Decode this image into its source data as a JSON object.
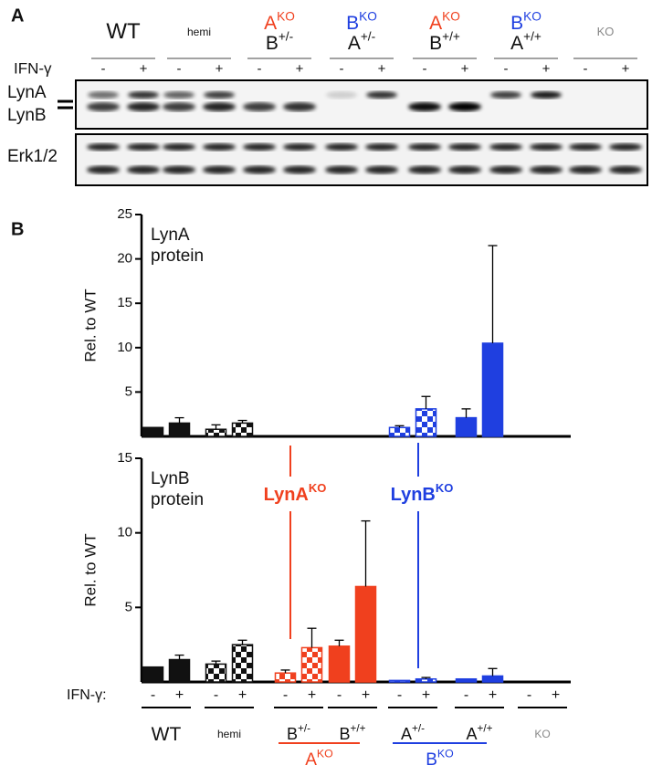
{
  "panel_a": {
    "label": "A",
    "ifn_label": "IFN-γ",
    "ifn_labels": [
      "-",
      "+"
    ],
    "groups": [
      {
        "label": "WT",
        "color": "#111111"
      },
      {
        "label": "hemi",
        "color": "#111111"
      },
      {
        "label": "A",
        "sup": "KO",
        "sub_label": "B",
        "sub_sup": "+/-",
        "color": "#f0401e"
      },
      {
        "label": "B",
        "sup": "KO",
        "sub_label": "A",
        "sub_sup": "+/-",
        "color": "#1f3fe0"
      },
      {
        "label": "A",
        "sup": "KO",
        "sub_label": "B",
        "sub_sup": "+/+",
        "color": "#f0401e"
      },
      {
        "label": "B",
        "sup": "KO",
        "sub_label": "A",
        "sub_sup": "+/+",
        "color": "#1f3fe0"
      },
      {
        "label": "KO",
        "color": "#888888"
      }
    ],
    "blot_labels": [
      "LynA",
      "LynB",
      "Erk1/2"
    ]
  },
  "panel_b_label": "B",
  "chart_data": [
    {
      "type": "bar",
      "title": [
        "LynA",
        "protein"
      ],
      "y_label": "Rel. to WT",
      "ylim": [
        0,
        25
      ],
      "yticks": [
        5,
        10,
        15,
        20,
        25
      ],
      "values": [
        1,
        1.5,
        0.8,
        1.5,
        0,
        0,
        0,
        0,
        1.0,
        3.1,
        2.1,
        10.5,
        0,
        0
      ],
      "errors": [
        null,
        0.6,
        0.5,
        0.3,
        null,
        null,
        null,
        null,
        0.2,
        1.4,
        1.0,
        11.0,
        null,
        null
      ],
      "colors": [
        "#111111",
        "#111111",
        "#111111",
        "#111111",
        "#f0401e",
        "#f0401e",
        "#f0401e",
        "#f0401e",
        "#1f3fe0",
        "#1f3fe0",
        "#1f3fe0",
        "#1f3fe0",
        "#111111",
        "#111111"
      ],
      "patterns": [
        "solid",
        "solid",
        "checker",
        "checker",
        "checker",
        "checker",
        "solid",
        "solid",
        "checker",
        "checker",
        "solid",
        "solid",
        "solid",
        "solid"
      ]
    },
    {
      "type": "bar",
      "title": [
        "LynB",
        "protein"
      ],
      "y_label": "Rel. to WT",
      "ylim": [
        0,
        15
      ],
      "yticks": [
        5,
        10,
        15
      ],
      "values": [
        1,
        1.5,
        1.2,
        2.5,
        0.6,
        2.3,
        2.4,
        6.4,
        0.1,
        0.2,
        0.2,
        0.4,
        0,
        0
      ],
      "errors": [
        null,
        0.3,
        0.2,
        0.3,
        0.2,
        1.3,
        0.4,
        4.4,
        null,
        0.1,
        null,
        0.5,
        null,
        null
      ],
      "colors": [
        "#111111",
        "#111111",
        "#111111",
        "#111111",
        "#f0401e",
        "#f0401e",
        "#f0401e",
        "#f0401e",
        "#1f3fe0",
        "#1f3fe0",
        "#1f3fe0",
        "#1f3fe0",
        "#111111",
        "#111111"
      ],
      "patterns": [
        "solid",
        "solid",
        "checker",
        "checker",
        "checker",
        "checker",
        "solid",
        "solid",
        "checker",
        "checker",
        "solid",
        "solid",
        "solid",
        "solid"
      ],
      "annotations": [
        {
          "text": "LynA",
          "sup": "KO",
          "color": "#f0401e"
        },
        {
          "text": "LynB",
          "sup": "KO",
          "color": "#1f3fe0"
        }
      ],
      "ifn_label": "IFN-γ:",
      "ifn_labels": [
        "-",
        "+"
      ],
      "group_labels": [
        {
          "label": "WT"
        },
        {
          "label": "hemi"
        },
        {
          "label": "B",
          "sup": "+/-"
        },
        {
          "label": "B",
          "sup": "+/+"
        },
        {
          "label": "A",
          "sup": "+/-"
        },
        {
          "label": "A",
          "sup": "+/+"
        },
        {
          "label": "KO"
        }
      ],
      "brackets": [
        {
          "label": "A",
          "sup": "KO",
          "color": "#f0401e"
        },
        {
          "label": "B",
          "sup": "KO",
          "color": "#1f3fe0"
        }
      ]
    }
  ]
}
